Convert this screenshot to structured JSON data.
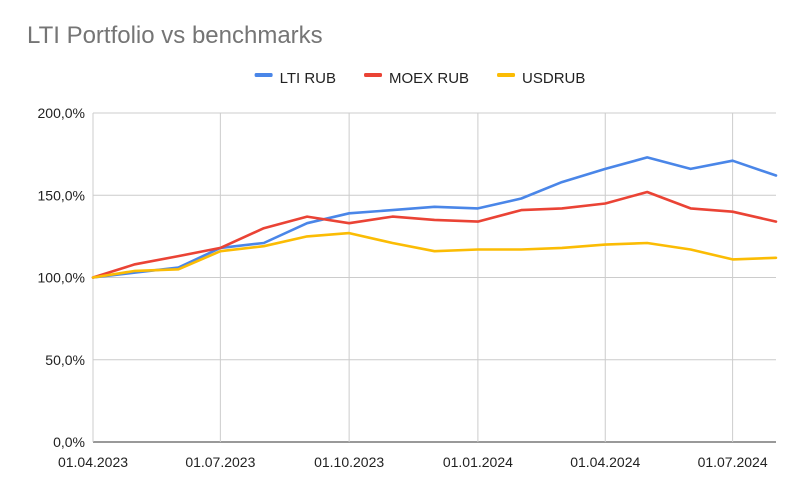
{
  "chart_data": {
    "type": "line",
    "title": "LTI Portfolio vs benchmarks",
    "xlabel": "",
    "ylabel": "",
    "x_tick_labels": [
      "01.04.2023",
      "01.07.2023",
      "01.10.2023",
      "01.01.2024",
      "01.04.2024",
      "01.07.2024"
    ],
    "y_tick_labels": [
      "0,0%",
      "50,0%",
      "100,0%",
      "150,0%",
      "200,0%"
    ],
    "y_ticks": [
      0,
      50,
      100,
      150,
      200
    ],
    "ylim": [
      0,
      200
    ],
    "xlim": [
      "2023-04-01",
      "2024-08-01"
    ],
    "grid": true,
    "legend_position": "top",
    "x": [
      "2023-04-01",
      "2023-05-01",
      "2023-06-01",
      "2023-07-01",
      "2023-08-01",
      "2023-09-01",
      "2023-10-01",
      "2023-11-01",
      "2023-12-01",
      "2024-01-01",
      "2024-02-01",
      "2024-03-01",
      "2024-04-01",
      "2024-05-01",
      "2024-06-01",
      "2024-07-01",
      "2024-08-01"
    ],
    "series": [
      {
        "name": "LTI RUB",
        "color": "#4a86e8",
        "values": [
          100,
          103,
          106,
          118,
          121,
          133,
          139,
          141,
          143,
          142,
          148,
          158,
          166,
          173,
          166,
          171,
          162
        ]
      },
      {
        "name": "MOEX RUB",
        "color": "#ea4335",
        "values": [
          100,
          108,
          113,
          118,
          130,
          137,
          133,
          137,
          135,
          134,
          141,
          142,
          145,
          152,
          142,
          140,
          134
        ]
      },
      {
        "name": "USDRUB",
        "color": "#fbbc04",
        "values": [
          100,
          104,
          105,
          116,
          119,
          125,
          127,
          121,
          116,
          117,
          117,
          118,
          120,
          121,
          117,
          111,
          112
        ]
      }
    ]
  }
}
